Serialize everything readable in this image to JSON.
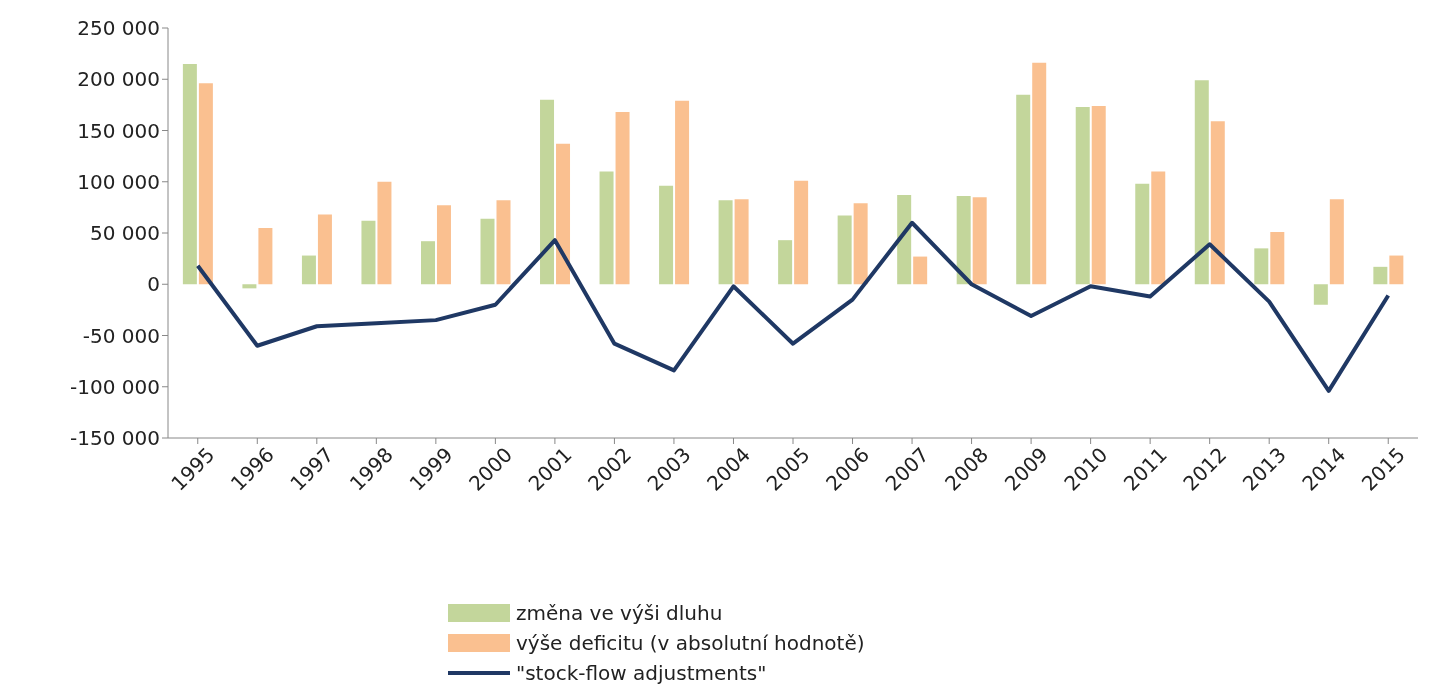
{
  "chart_data": {
    "type": "bar",
    "categories": [
      "1995",
      "1996",
      "1997",
      "1998",
      "1999",
      "2000",
      "2001",
      "2002",
      "2003",
      "2004",
      "2005",
      "2006",
      "2007",
      "2008",
      "2009",
      "2010",
      "2011",
      "2012",
      "2013",
      "2014",
      "2015"
    ],
    "series": [
      {
        "name": "změna ve výši dluhu",
        "color": "#c3d69b",
        "values": [
          215000,
          -4000,
          28000,
          62000,
          42000,
          64000,
          180000,
          110000,
          96000,
          82000,
          43000,
          67000,
          87000,
          86000,
          185000,
          173000,
          98000,
          199000,
          35000,
          -20000,
          17000
        ]
      },
      {
        "name": "výše deficitu (v absolutní hodnotě)",
        "color": "#fac090",
        "values": [
          196000,
          55000,
          68000,
          100000,
          77000,
          82000,
          137000,
          168000,
          179000,
          83000,
          101000,
          79000,
          27000,
          85000,
          216000,
          174000,
          110000,
          159000,
          51000,
          83000,
          28000
        ]
      },
      {
        "name": "\"stock-flow adjustments\"",
        "type": "line",
        "color": "#1f3864",
        "values": [
          18000,
          -60000,
          -41000,
          -38000,
          -35000,
          -20000,
          43000,
          -58000,
          -84000,
          -2000,
          -58000,
          -15000,
          60000,
          0,
          -31000,
          -2000,
          -12000,
          39000,
          -17000,
          -104000,
          -11000
        ]
      }
    ],
    "ylim": [
      -150000,
      250000
    ],
    "yticks": [
      {
        "value": -150000,
        "label": "-150 000"
      },
      {
        "value": -100000,
        "label": "-100 000"
      },
      {
        "value": -50000,
        "label": "-50 000"
      },
      0,
      {
        "value": 50000,
        "label": "50 000"
      },
      {
        "value": 100000,
        "label": "100 000"
      },
      {
        "value": 150000,
        "label": "150 000"
      },
      {
        "value": 200000,
        "label": "200 000"
      },
      {
        "value": 250000,
        "label": "250 000"
      }
    ],
    "grid": false,
    "legend": "bottom",
    "marker": "none",
    "line_style": "solid"
  }
}
